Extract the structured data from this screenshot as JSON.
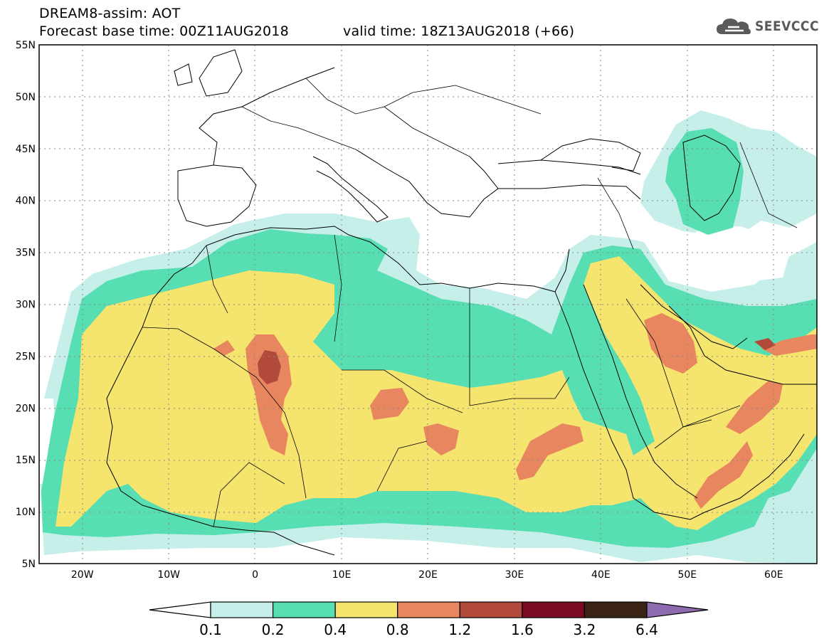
{
  "header": {
    "line1": "DREAM8-assim: AOT",
    "line2": "Forecast base time: 00Z11AUG2018",
    "line3": "valid time: 18Z13AUG2018 (+66)"
  },
  "logo": {
    "text": "SEEVCCC",
    "icon": "cloud-icon"
  },
  "map": {
    "lon_range": [
      -25,
      65
    ],
    "lat_range": [
      5,
      55
    ],
    "lat_labels": [
      "55N",
      "50N",
      "45N",
      "40N",
      "35N",
      "30N",
      "25N",
      "20N",
      "15N",
      "10N",
      "5N"
    ],
    "lon_labels": [
      "20W",
      "10W",
      "0",
      "10E",
      "20E",
      "30E",
      "40E",
      "50E",
      "60E"
    ],
    "grid": true
  },
  "colorbar": {
    "labels": [
      "0.1",
      "0.2",
      "0.4",
      "0.8",
      "1.2",
      "1.6",
      "3.2",
      "6.4"
    ],
    "colors": [
      "#ffffff",
      "#c6efe9",
      "#57deb3",
      "#f5e46e",
      "#e7865f",
      "#b24a3c",
      "#7b0a22",
      "#3b2314",
      "#8e6bb0"
    ]
  }
}
